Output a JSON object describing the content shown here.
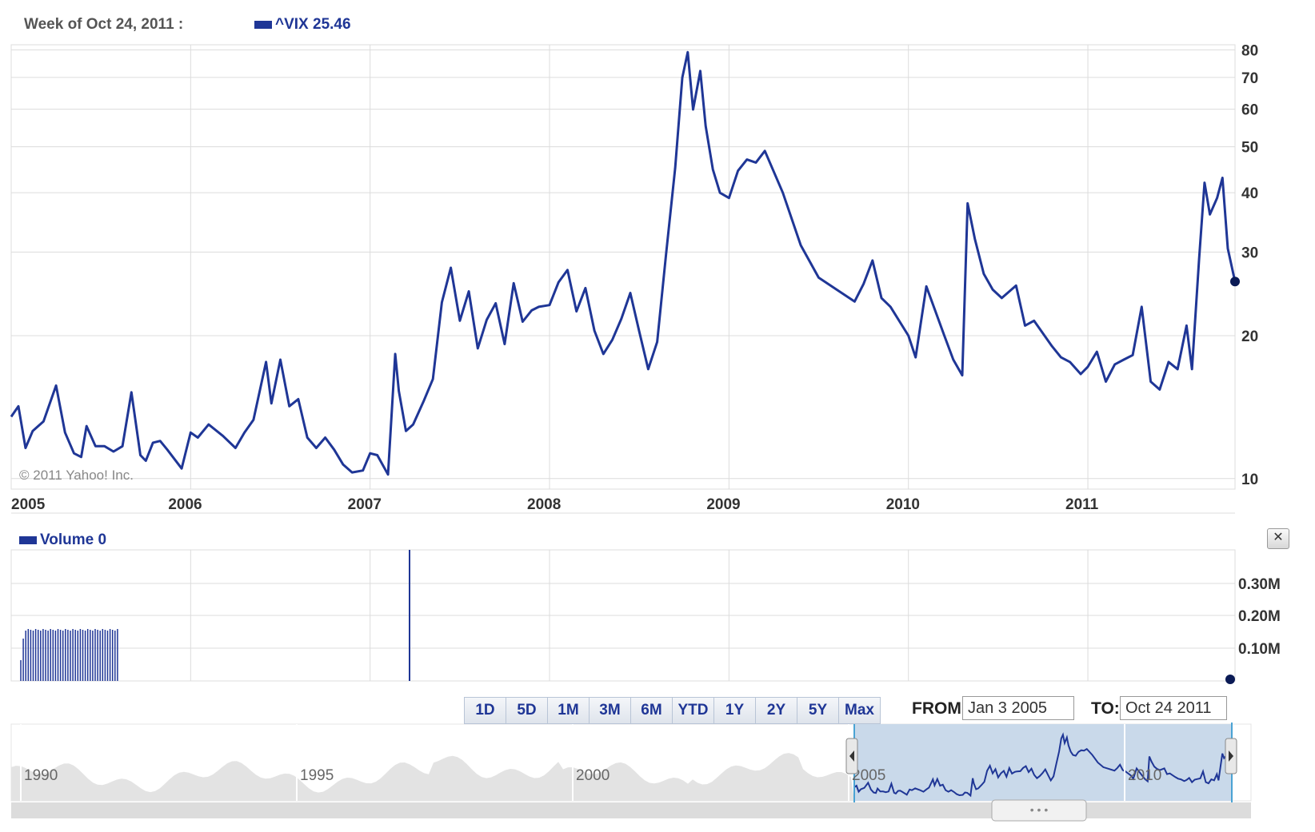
{
  "header": {
    "date_label": "Week of Oct 24, 2011 :",
    "series_label": "^VIX 25.46"
  },
  "copyright": "© 2011 Yahoo! Inc.",
  "volume": {
    "label": "Volume 0",
    "ticks": [
      "0.30M",
      "0.20M",
      "0.10M"
    ]
  },
  "range_buttons": [
    "1D",
    "5D",
    "1M",
    "3M",
    "6M",
    "YTD",
    "1Y",
    "2Y",
    "5Y",
    "Max"
  ],
  "from": {
    "label": "FROM:",
    "value": "Jan 3 2005"
  },
  "to": {
    "label": "TO:",
    "value": "Oct 24 2011"
  },
  "navigator": {
    "year_labels": [
      "1990",
      "1995",
      "2000",
      "2005",
      "2010"
    ]
  },
  "colors": {
    "series": "#1f3696",
    "grid": "#dcdcdc",
    "navigator_fill": "#c9d9ea",
    "navigator_bg": "#e6e6e6"
  },
  "chart_data": {
    "type": "line",
    "title": "",
    "scale": "log",
    "ylim": [
      9.5,
      82
    ],
    "y_ticks": [
      10,
      20,
      30,
      40,
      50,
      60,
      70,
      80
    ],
    "x_ticks": [
      "2005",
      "2006",
      "2007",
      "2008",
      "2009",
      "2010",
      "2011"
    ],
    "xlim": [
      2005.0,
      2011.82
    ],
    "grid": true,
    "series": [
      {
        "name": "^VIX",
        "x": [
          2005.0,
          2005.04,
          2005.08,
          2005.12,
          2005.18,
          2005.25,
          2005.3,
          2005.35,
          2005.39,
          2005.42,
          2005.47,
          2005.52,
          2005.57,
          2005.62,
          2005.67,
          2005.72,
          2005.75,
          2005.79,
          2005.83,
          2005.87,
          2005.95,
          2006.0,
          2006.04,
          2006.1,
          2006.18,
          2006.25,
          2006.3,
          2006.35,
          2006.42,
          2006.45,
          2006.5,
          2006.55,
          2006.6,
          2006.65,
          2006.7,
          2006.75,
          2006.8,
          2006.85,
          2006.9,
          2006.96,
          2007.0,
          2007.04,
          2007.1,
          2007.14,
          2007.16,
          2007.2,
          2007.24,
          2007.3,
          2007.35,
          2007.4,
          2007.45,
          2007.5,
          2007.55,
          2007.6,
          2007.65,
          2007.7,
          2007.75,
          2007.8,
          2007.85,
          2007.9,
          2007.94,
          2008.0,
          2008.05,
          2008.1,
          2008.15,
          2008.2,
          2008.25,
          2008.3,
          2008.35,
          2008.4,
          2008.45,
          2008.5,
          2008.55,
          2008.6,
          2008.65,
          2008.7,
          2008.74,
          2008.77,
          2008.8,
          2008.84,
          2008.87,
          2008.91,
          2008.95,
          2009.0,
          2009.05,
          2009.1,
          2009.15,
          2009.2,
          2009.3,
          2009.4,
          2009.5,
          2009.6,
          2009.7,
          2009.75,
          2009.8,
          2009.85,
          2009.9,
          2010.0,
          2010.04,
          2010.1,
          2010.2,
          2010.25,
          2010.3,
          2010.33,
          2010.37,
          2010.42,
          2010.47,
          2010.52,
          2010.6,
          2010.65,
          2010.7,
          2010.8,
          2010.85,
          2010.9,
          2010.96,
          2011.0,
          2011.05,
          2011.1,
          2011.15,
          2011.2,
          2011.25,
          2011.3,
          2011.35,
          2011.4,
          2011.45,
          2011.5,
          2011.55,
          2011.58,
          2011.62,
          2011.65,
          2011.68,
          2011.72,
          2011.75,
          2011.78,
          2011.82
        ],
        "y": [
          13.5,
          14.2,
          11.6,
          12.6,
          13.2,
          15.7,
          12.5,
          11.3,
          11.1,
          12.9,
          11.7,
          11.7,
          11.4,
          11.7,
          15.2,
          11.2,
          10.9,
          11.9,
          12.0,
          11.5,
          10.5,
          12.5,
          12.2,
          13.0,
          12.3,
          11.6,
          12.5,
          13.3,
          17.6,
          14.4,
          17.8,
          14.2,
          14.7,
          12.2,
          11.6,
          12.2,
          11.5,
          10.7,
          10.3,
          10.4,
          11.3,
          11.2,
          10.2,
          18.3,
          15.3,
          12.6,
          13.0,
          14.6,
          16.2,
          23.5,
          27.8,
          21.5,
          24.8,
          18.8,
          21.6,
          23.4,
          19.2,
          25.8,
          21.4,
          22.6,
          23.0,
          23.2,
          25.9,
          27.5,
          22.5,
          25.2,
          20.5,
          18.3,
          19.6,
          21.7,
          24.6,
          20.4,
          17.0,
          19.4,
          29.8,
          45.1,
          69.9,
          79.1,
          59.9,
          72.2,
          55.3,
          44.8,
          40.0,
          39.0,
          44.5,
          47.0,
          46.3,
          49.0,
          40.0,
          31.0,
          26.5,
          25.0,
          23.6,
          25.7,
          28.8,
          24.0,
          23.0,
          20.0,
          18.0,
          25.4,
          20.0,
          17.8,
          16.5,
          38.0,
          32.0,
          27.0,
          25.0,
          24.0,
          25.5,
          21.0,
          21.5,
          19.0,
          18.0,
          17.6,
          16.6,
          17.2,
          18.5,
          16.0,
          17.4,
          17.8,
          18.2,
          23.0,
          16.0,
          15.4,
          17.6,
          17.0,
          21.0,
          17.0,
          29.0,
          42.0,
          36.0,
          39.0,
          43.0,
          30.5,
          26.0
        ]
      }
    ]
  }
}
